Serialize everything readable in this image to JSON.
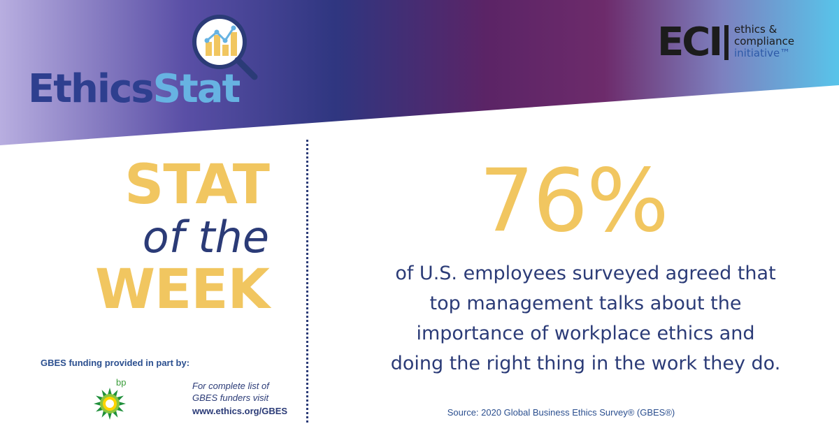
{
  "brand": {
    "name_part1": "Ethics",
    "name_part2": "Stat"
  },
  "eci": {
    "mark": "ECI",
    "line1": "ethics &",
    "line2": "compliance",
    "line3": "initiative™"
  },
  "stat_of_the_week": {
    "line1": "STAT",
    "line2": "of the",
    "line3": "WEEK"
  },
  "funding": {
    "label": "GBES funding provided in part by:",
    "sponsor": "bp",
    "note_line1": "For complete list of",
    "note_line2": "GBES funders visit",
    "url": "www.ethics.org/GBES"
  },
  "stat": {
    "value": "76%",
    "lines": [
      "of U.S. employees surveyed agreed that",
      "top management talks about the",
      "importance of workplace ethics and",
      "doing the right thing in the work they do."
    ]
  },
  "source": "Source: 2020 Global Business Ethics Survey® (GBES®)",
  "colors": {
    "gold": "#f1c660",
    "navy": "#2b3b77",
    "banner_left": "#a99ad6",
    "banner_mid": "#2e3f8f",
    "banner_purple": "#6a2a6a",
    "banner_right": "#5cc3e8"
  }
}
